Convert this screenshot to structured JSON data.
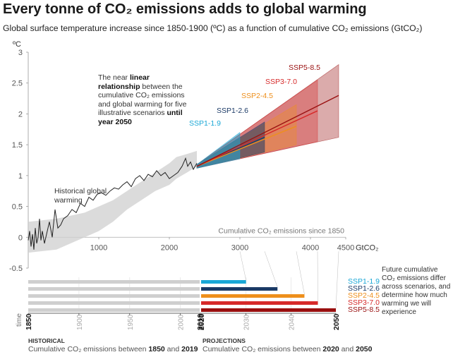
{
  "title": "Every tonne of CO₂ emissions adds to global warming",
  "subtitle": "Global surface temperature increase since 1850-1900 (ºC) as a function of cumulative CO₂ emissions (GtCO₂)",
  "annotation": {
    "part1": "The near ",
    "bold1": "linear relationship",
    "part2": " between the cumulative CO₂ emissions and global warming for five illustrative scenarios ",
    "bold2": "until year 2050"
  },
  "historical_label": "Historical global warming",
  "side_note": "Future cumulative CO₂ emissions differ across scenarios, and determine how much warming we will experience",
  "footer": {
    "historical_heading": "HISTORICAL",
    "historical_prefix": "Cumulative CO₂ emissions between ",
    "historical_from": "1850",
    "historical_and": " and ",
    "historical_to": "2019",
    "projections_heading": "PROJECTIONS",
    "projections_prefix": "Cumulative CO₂ emissions between ",
    "projections_from": "2020",
    "projections_and": " and ",
    "projections_to": "2050"
  },
  "colors": {
    "ssp119": "#1aa7d6",
    "ssp126": "#1b3a66",
    "ssp245": "#ee8f1c",
    "ssp370": "#d62a2a",
    "ssp585": "#990f0f",
    "historical": "#222222",
    "hist_band": "#cfcfcf"
  },
  "chart_data": [
    {
      "type": "line",
      "title": "",
      "ylabel": "ºC",
      "xlabel": "Cumulative CO₂ emissions since 1850",
      "x_unit_label": "GtCO₂",
      "xlim": [
        0,
        4500
      ],
      "ylim": [
        -0.5,
        3
      ],
      "x_ticks": [
        1000,
        2000,
        3000,
        4000,
        4500
      ],
      "y_ticks": [
        -0.5,
        0,
        0.5,
        1,
        1.5,
        2,
        2.5,
        3
      ],
      "grid": false,
      "historical": {
        "name": "Historical global warming",
        "x": [
          0,
          20,
          40,
          60,
          80,
          100,
          120,
          140,
          160,
          180,
          200,
          230,
          260,
          300,
          340,
          380,
          420,
          460,
          500,
          560,
          620,
          680,
          740,
          800,
          860,
          920,
          980,
          1040,
          1100,
          1160,
          1220,
          1280,
          1340,
          1400,
          1460,
          1520,
          1580,
          1640,
          1700,
          1760,
          1820,
          1880,
          1940,
          2000,
          2060,
          2120,
          2180,
          2230,
          2260,
          2300,
          2340,
          2390
        ],
        "y": [
          -0.05,
          0.1,
          -0.15,
          0.05,
          -0.2,
          0.15,
          -0.1,
          0.0,
          0.3,
          -0.05,
          0.1,
          -0.1,
          0.05,
          0.25,
          0.0,
          0.45,
          0.15,
          0.2,
          0.3,
          0.35,
          0.45,
          0.4,
          0.55,
          0.5,
          0.65,
          0.6,
          0.7,
          0.72,
          0.68,
          0.75,
          0.8,
          0.78,
          0.85,
          0.9,
          0.82,
          0.95,
          1.0,
          0.92,
          1.02,
          0.98,
          1.08,
          1.0,
          1.05,
          0.95,
          1.0,
          1.05,
          1.15,
          1.28,
          1.15,
          1.22,
          1.1,
          1.2
        ],
        "band_upper": [
          0.25,
          0.3,
          0.4,
          0.5,
          0.6,
          0.75,
          0.9,
          1.05,
          1.2,
          1.3,
          1.35,
          1.4
        ],
        "band_lower": [
          -0.25,
          -0.2,
          0.0,
          0.1,
          0.25,
          0.45,
          0.6,
          0.75,
          0.85,
          0.95,
          1.05,
          1.15
        ],
        "band_x": [
          0,
          400,
          800,
          1000,
          1200,
          1400,
          1600,
          1800,
          2000,
          2100,
          2250,
          2390
        ]
      },
      "series": [
        {
          "name": "SSP1-1.9",
          "x_end": 3000,
          "central_end": 1.48,
          "upper_end": 1.7,
          "lower_end": 1.27
        },
        {
          "name": "SSP1-2.6",
          "x_end": 3350,
          "central_end": 1.62,
          "upper_end": 1.87,
          "lower_end": 1.38
        },
        {
          "name": "SSP2-4.5",
          "x_end": 3800,
          "central_end": 1.8,
          "upper_end": 2.15,
          "lower_end": 1.5
        },
        {
          "name": "SSP3-7.0",
          "x_end": 4100,
          "central_end": 2.05,
          "upper_end": 2.55,
          "lower_end": 1.55
        },
        {
          "name": "SSP5-8.5",
          "x_end": 4400,
          "central_end": 2.3,
          "upper_end": 2.8,
          "lower_end": 1.62
        }
      ],
      "projection_start": {
        "x": 2390,
        "y": 1.15
      }
    },
    {
      "type": "bar",
      "title": "",
      "x_ticks": [
        "1850",
        "1900",
        "1950",
        "2000",
        "2019",
        "2020",
        "2030",
        "2040",
        "2050"
      ],
      "x_tick_bold": [
        "1850",
        "2019",
        "2020",
        "2050"
      ],
      "axis_label": "time",
      "categories": [
        "SSP1-1.9",
        "SSP1-2.6",
        "SSP2-4.5",
        "SSP3-7.0",
        "SSP5-8.5"
      ],
      "historical_span": [
        1850,
        2019
      ],
      "projection_end_year": [
        2030,
        2037,
        2043,
        2046,
        2050
      ],
      "projection_start_year": 2020
    }
  ]
}
